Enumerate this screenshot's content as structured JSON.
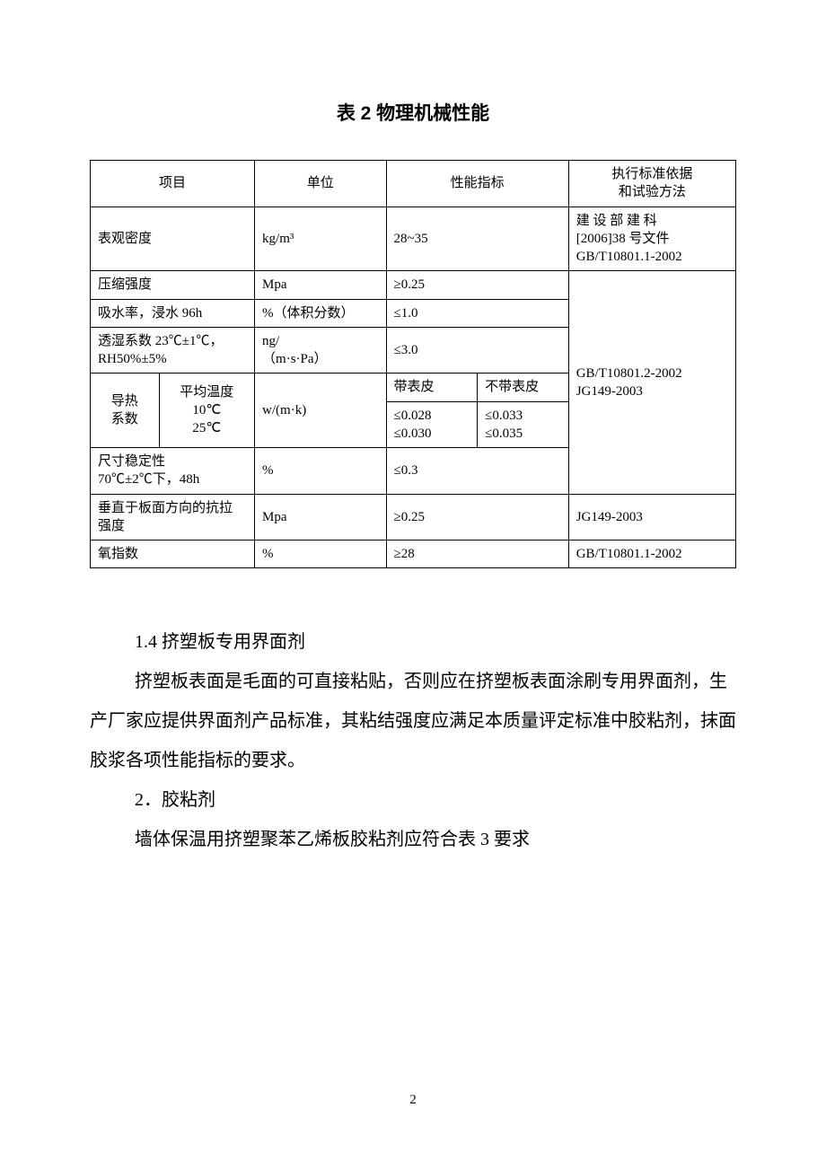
{
  "title": "表 2 物理机械性能",
  "headers": {
    "item": "项目",
    "unit": "单位",
    "perf": "性能指标",
    "std": "执行标准依据\n和试验方法"
  },
  "rows": {
    "density": {
      "item": "表观密度",
      "unit": "kg/m³",
      "perf": "28~35",
      "std": "建 设 部 建 科\n[2006]38 号文件\nGB/T10801.1-2002"
    },
    "compress": {
      "item": "压缩强度",
      "unit": "Mpa",
      "perf": "≥0.25"
    },
    "absorb": {
      "item": "吸水率，浸水 96h",
      "unit": "%（体积分数）",
      "perf": "≤1.0"
    },
    "vapor": {
      "item": "透湿系数 23℃±1℃，\nRH50%±5%",
      "unit": "ng/\n（m·s·Pa）",
      "perf": "≤3.0"
    },
    "thermal_group_std": "GB/T10801.2-2002\nJG149-2003",
    "thermal": {
      "label": "导热\n系数",
      "temp": "平均温度\n10℃\n25℃",
      "unit": "w/(m·k)",
      "h1": "带表皮",
      "h2": "不带表皮",
      "v1": "≤0.028\n≤0.030",
      "v2": "≤0.033\n≤0.035"
    },
    "dim": {
      "item": "尺寸稳定性\n70℃±2℃下，48h",
      "unit": "%",
      "perf": "≤0.3"
    },
    "tensile": {
      "item": "垂直于板面方向的抗拉\n强度",
      "unit": "Mpa",
      "perf": "≥0.25",
      "std": "JG149-2003"
    },
    "oxy": {
      "item": "氧指数",
      "unit": "%",
      "perf": "≥28",
      "std": "GB/T10801.1-2002"
    }
  },
  "body": {
    "p1": "1.4 挤塑板专用界面剂",
    "p2": "挤塑板表面是毛面的可直接粘贴，否则应在挤塑板表面涂刷专用界面剂，生产厂家应提供界面剂产品标准，其粘结强度应满足本质量评定标准中胶粘剂，抹面胶浆各项性能指标的要求。",
    "p3": "2．胶粘剂",
    "p4": "墙体保温用挤塑聚苯乙烯板胶粘剂应符合表 3 要求"
  },
  "pageNumber": "2"
}
